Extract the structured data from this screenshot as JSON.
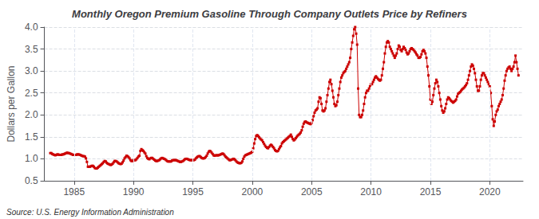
{
  "chart_data": {
    "type": "line",
    "title": "Monthly Oregon Premium Gasoline Through Company Outlets Price by Refiners",
    "ylabel": "Dollars per Gallon",
    "annotations": [
      "Source: U.S. Energy Information Administration"
    ],
    "color": "#cc0000",
    "marker": "square",
    "grid": true,
    "xlim": [
      1982.5,
      2022.8
    ],
    "xticks": [
      1985,
      1990,
      1995,
      2000,
      2005,
      2010,
      2015,
      2020
    ],
    "ylim": [
      0.5,
      4.0
    ],
    "yticks": [
      0.5,
      {
        "value": 1.0,
        "label": "1.0"
      },
      1.5,
      {
        "value": 2.0,
        "label": "2.0"
      },
      2.5,
      {
        "value": 3.0,
        "label": "3.0"
      },
      3.5,
      {
        "value": 4.0,
        "label": "4.0"
      }
    ],
    "x": [
      1983.0,
      1983.083,
      1983.167,
      1983.25,
      1983.333,
      1983.417,
      1983.5,
      1983.583,
      1983.667,
      1983.75,
      1983.833,
      1983.917,
      1984.0,
      1984.083,
      1984.167,
      1984.25,
      1984.333,
      1984.417,
      1984.5,
      1984.583,
      1984.667,
      1984.75,
      1984.833,
      1984.917,
      1985.0,
      1985.083,
      1985.167,
      1985.25,
      1985.333,
      1985.417,
      1985.5,
      1985.583,
      1985.667,
      1985.75,
      1985.833,
      1985.917,
      1986.0,
      1986.083,
      1986.167,
      1986.25,
      1986.333,
      1986.417,
      1986.5,
      1986.583,
      1986.667,
      1986.75,
      1986.833,
      1986.917,
      1987.0,
      1987.083,
      1987.167,
      1987.25,
      1987.333,
      1987.417,
      1987.5,
      1987.583,
      1987.667,
      1987.75,
      1987.833,
      1987.917,
      1988.0,
      1988.083,
      1988.167,
      1988.25,
      1988.333,
      1988.417,
      1988.5,
      1988.583,
      1988.667,
      1988.75,
      1988.833,
      1988.917,
      1989.0,
      1989.083,
      1989.167,
      1989.25,
      1989.333,
      1989.417,
      1989.5,
      1989.583,
      1989.667,
      1989.75,
      1989.833,
      1989.917,
      1990.0,
      1990.083,
      1990.167,
      1990.25,
      1990.333,
      1990.417,
      1990.5,
      1990.583,
      1990.667,
      1990.75,
      1990.833,
      1990.917,
      1991.0,
      1991.083,
      1991.167,
      1991.25,
      1991.333,
      1991.417,
      1991.5,
      1991.583,
      1991.667,
      1991.75,
      1991.833,
      1991.917,
      1992.0,
      1992.083,
      1992.167,
      1992.25,
      1992.333,
      1992.417,
      1992.5,
      1992.583,
      1992.667,
      1992.75,
      1992.833,
      1992.917,
      1993.0,
      1993.083,
      1993.167,
      1993.25,
      1993.333,
      1993.417,
      1993.5,
      1993.583,
      1993.667,
      1993.75,
      1993.833,
      1993.917,
      1994.0,
      1994.083,
      1994.167,
      1994.25,
      1994.333,
      1994.417,
      1994.5,
      1994.583,
      1994.667,
      1994.75,
      1994.833,
      1994.917,
      1995.0,
      1995.083,
      1995.167,
      1995.25,
      1995.333,
      1995.417,
      1995.5,
      1995.583,
      1995.667,
      1995.75,
      1995.833,
      1995.917,
      1996.0,
      1996.083,
      1996.167,
      1996.25,
      1996.333,
      1996.417,
      1996.5,
      1996.583,
      1996.667,
      1996.75,
      1996.833,
      1996.917,
      1997.0,
      1997.083,
      1997.167,
      1997.25,
      1997.333,
      1997.417,
      1997.5,
      1997.583,
      1997.667,
      1997.75,
      1997.833,
      1997.917,
      1998.0,
      1998.083,
      1998.167,
      1998.25,
      1998.333,
      1998.417,
      1998.5,
      1998.583,
      1998.667,
      1998.75,
      1998.833,
      1998.917,
      1999.0,
      1999.083,
      1999.167,
      1999.25,
      1999.333,
      1999.417,
      1999.5,
      1999.583,
      1999.667,
      1999.75,
      1999.833,
      1999.917,
      2000.0,
      2000.083,
      2000.167,
      2000.25,
      2000.333,
      2000.417,
      2000.5,
      2000.583,
      2000.667,
      2000.75,
      2000.833,
      2000.917,
      2001.0,
      2001.083,
      2001.167,
      2001.25,
      2001.333,
      2001.417,
      2001.5,
      2001.583,
      2001.667,
      2001.75,
      2001.833,
      2001.917,
      2002.0,
      2002.083,
      2002.167,
      2002.25,
      2002.333,
      2002.417,
      2002.5,
      2002.583,
      2002.667,
      2002.75,
      2002.833,
      2002.917,
      2003.0,
      2003.083,
      2003.167,
      2003.25,
      2003.333,
      2003.417,
      2003.5,
      2003.583,
      2003.667,
      2003.75,
      2003.833,
      2003.917,
      2004.0,
      2004.083,
      2004.167,
      2004.25,
      2004.333,
      2004.417,
      2004.5,
      2004.583,
      2004.667,
      2004.75,
      2004.833,
      2004.917,
      2005.0,
      2005.083,
      2005.167,
      2005.25,
      2005.333,
      2005.417,
      2005.5,
      2005.583,
      2005.667,
      2005.75,
      2005.833,
      2005.917,
      2006.0,
      2006.083,
      2006.167,
      2006.25,
      2006.333,
      2006.417,
      2006.5,
      2006.583,
      2006.667,
      2006.75,
      2006.833,
      2006.917,
      2007.0,
      2007.083,
      2007.167,
      2007.25,
      2007.333,
      2007.417,
      2007.5,
      2007.583,
      2007.667,
      2007.75,
      2007.833,
      2007.917,
      2008.0,
      2008.083,
      2008.167,
      2008.25,
      2008.333,
      2008.417,
      2008.5,
      2008.583,
      2008.667,
      2008.75,
      2008.833,
      2008.917,
      2009.0,
      2009.083,
      2009.167,
      2009.25,
      2009.333,
      2009.417,
      2009.5,
      2009.583,
      2009.667,
      2009.75,
      2009.833,
      2009.917,
      2010.0,
      2010.083,
      2010.167,
      2010.25,
      2010.333,
      2010.417,
      2010.5,
      2010.583,
      2010.667,
      2010.75,
      2010.833,
      2010.917,
      2011.0,
      2011.083,
      2011.167,
      2011.25,
      2011.333,
      2011.417,
      2011.5,
      2011.583,
      2011.667,
      2011.75,
      2011.833,
      2011.917,
      2012.0,
      2012.083,
      2012.167,
      2012.25,
      2012.333,
      2012.417,
      2012.5,
      2012.583,
      2012.667,
      2012.75,
      2012.833,
      2012.917,
      2013.0,
      2013.083,
      2013.167,
      2013.25,
      2013.333,
      2013.417,
      2013.5,
      2013.583,
      2013.667,
      2013.75,
      2013.833,
      2013.917,
      2014.0,
      2014.083,
      2014.167,
      2014.25,
      2014.333,
      2014.417,
      2014.5,
      2014.583,
      2014.667,
      2014.75,
      2014.833,
      2014.917,
      2015.0,
      2015.083,
      2015.167,
      2015.25,
      2015.333,
      2015.417,
      2015.5,
      2015.583,
      2015.667,
      2015.75,
      2015.833,
      2015.917,
      2016.0,
      2016.083,
      2016.167,
      2016.25,
      2016.333,
      2016.417,
      2016.5,
      2016.583,
      2016.667,
      2016.75,
      2016.833,
      2016.917,
      2017.0,
      2017.083,
      2017.167,
      2017.25,
      2017.333,
      2017.417,
      2017.5,
      2017.583,
      2017.667,
      2017.75,
      2017.833,
      2017.917,
      2018.0,
      2018.083,
      2018.167,
      2018.25,
      2018.333,
      2018.417,
      2018.5,
      2018.583,
      2018.667,
      2018.75,
      2018.833,
      2018.917,
      2019.0,
      2019.083,
      2019.167,
      2019.25,
      2019.333,
      2019.417,
      2019.5,
      2019.583,
      2019.667,
      2019.75,
      2019.833,
      2019.917,
      2020.0,
      2020.083,
      2020.167,
      2020.25,
      2020.333,
      2020.417,
      2020.5,
      2020.583,
      2020.667,
      2020.75,
      2020.833,
      2020.917,
      2021.0,
      2021.083,
      2021.167,
      2021.25,
      2021.333,
      2021.417,
      2021.5,
      2021.583,
      2021.667,
      2021.75,
      2021.833,
      2021.917,
      2022.0,
      2022.083,
      2022.167,
      2022.25,
      2022.333,
      2022.417
    ],
    "values": [
      1.13,
      1.13,
      1.11,
      1.1,
      1.09,
      1.08,
      1.09,
      1.1,
      1.1,
      1.09,
      1.09,
      1.09,
      1.1,
      1.1,
      1.11,
      1.12,
      1.13,
      1.14,
      1.13,
      1.13,
      1.12,
      1.11,
      1.1,
      1.09,
      1.09,
      1.09,
      1.09,
      1.1,
      1.1,
      1.1,
      1.09,
      1.08,
      1.07,
      1.06,
      1.06,
      1.05,
      1.01,
      0.93,
      0.82,
      0.82,
      0.82,
      0.83,
      0.84,
      0.84,
      0.82,
      0.79,
      0.78,
      0.78,
      0.8,
      0.82,
      0.84,
      0.86,
      0.88,
      0.9,
      0.93,
      0.95,
      0.94,
      0.91,
      0.89,
      0.88,
      0.87,
      0.86,
      0.87,
      0.89,
      0.92,
      0.95,
      0.95,
      0.94,
      0.92,
      0.9,
      0.89,
      0.88,
      0.89,
      0.92,
      0.96,
      1.01,
      1.04,
      1.07,
      1.06,
      1.04,
      1.01,
      0.97,
      0.95,
      0.95,
      0.97,
      0.97,
      0.97,
      0.99,
      1.02,
      1.05,
      1.07,
      1.18,
      1.22,
      1.2,
      1.18,
      1.15,
      1.12,
      1.06,
      1.02,
      1.0,
      0.99,
      1.01,
      1.02,
      1.02,
      1.0,
      0.98,
      0.96,
      0.95,
      0.95,
      0.96,
      0.97,
      0.99,
      1.01,
      1.02,
      1.01,
      1.0,
      0.99,
      0.97,
      0.95,
      0.94,
      0.94,
      0.94,
      0.94,
      0.96,
      0.97,
      0.97,
      0.97,
      0.97,
      0.96,
      0.95,
      0.94,
      0.93,
      0.93,
      0.94,
      0.95,
      0.97,
      0.99,
      1.0,
      1.0,
      0.99,
      0.98,
      0.97,
      0.97,
      0.97,
      0.97,
      0.97,
      0.98,
      1.01,
      1.03,
      1.05,
      1.06,
      1.06,
      1.04,
      1.02,
      1.01,
      1.01,
      1.02,
      1.04,
      1.07,
      1.12,
      1.16,
      1.18,
      1.17,
      1.14,
      1.11,
      1.08,
      1.07,
      1.08,
      1.08,
      1.08,
      1.08,
      1.09,
      1.1,
      1.11,
      1.12,
      1.11,
      1.08,
      1.05,
      1.03,
      1.01,
      0.99,
      0.97,
      0.97,
      0.98,
      0.99,
      1.0,
      0.99,
      0.97,
      0.94,
      0.92,
      0.91,
      0.9,
      0.9,
      0.91,
      0.94,
      1.0,
      1.05,
      1.08,
      1.09,
      1.1,
      1.11,
      1.12,
      1.13,
      1.14,
      1.16,
      1.24,
      1.35,
      1.45,
      1.52,
      1.54,
      1.52,
      1.49,
      1.46,
      1.44,
      1.42,
      1.38,
      1.34,
      1.3,
      1.27,
      1.25,
      1.24,
      1.27,
      1.3,
      1.32,
      1.3,
      1.27,
      1.24,
      1.2,
      1.18,
      1.17,
      1.18,
      1.22,
      1.26,
      1.29,
      1.35,
      1.38,
      1.4,
      1.42,
      1.44,
      1.46,
      1.48,
      1.5,
      1.52,
      1.55,
      1.5,
      1.45,
      1.42,
      1.44,
      1.47,
      1.5,
      1.53,
      1.55,
      1.57,
      1.6,
      1.65,
      1.73,
      1.8,
      1.84,
      1.85,
      1.83,
      1.82,
      1.81,
      1.8,
      1.79,
      1.82,
      1.88,
      1.97,
      2.05,
      2.1,
      2.12,
      2.15,
      2.3,
      2.4,
      2.38,
      2.25,
      2.1,
      2.08,
      2.1,
      2.15,
      2.3,
      2.45,
      2.6,
      2.75,
      2.8,
      2.7,
      2.55,
      2.4,
      2.25,
      2.2,
      2.22,
      2.3,
      2.45,
      2.6,
      2.75,
      2.85,
      2.9,
      2.95,
      2.98,
      3.0,
      3.05,
      3.1,
      3.15,
      3.2,
      3.3,
      3.5,
      3.65,
      3.8,
      3.95,
      4.0,
      3.85,
      3.6,
      2.6,
      2.0,
      1.95,
      1.95,
      2.0,
      2.1,
      2.25,
      2.4,
      2.5,
      2.55,
      2.55,
      2.6,
      2.65,
      2.7,
      2.7,
      2.75,
      2.8,
      2.85,
      2.88,
      2.85,
      2.82,
      2.8,
      2.78,
      2.8,
      2.9,
      3.05,
      3.2,
      3.4,
      3.55,
      3.65,
      3.68,
      3.65,
      3.55,
      3.5,
      3.45,
      3.4,
      3.35,
      3.3,
      3.35,
      3.4,
      3.5,
      3.58,
      3.55,
      3.48,
      3.45,
      3.5,
      3.55,
      3.52,
      3.48,
      3.42,
      3.38,
      3.4,
      3.45,
      3.5,
      3.52,
      3.5,
      3.48,
      3.45,
      3.42,
      3.38,
      3.35,
      3.3,
      3.3,
      3.32,
      3.38,
      3.45,
      3.48,
      3.45,
      3.4,
      3.3,
      3.1,
      2.9,
      2.65,
      2.35,
      2.25,
      2.3,
      2.45,
      2.6,
      2.72,
      2.8,
      2.75,
      2.65,
      2.5,
      2.35,
      2.2,
      2.1,
      2.05,
      2.08,
      2.15,
      2.25,
      2.35,
      2.4,
      2.38,
      2.35,
      2.32,
      2.3,
      2.28,
      2.3,
      2.32,
      2.35,
      2.42,
      2.48,
      2.5,
      2.52,
      2.55,
      2.58,
      2.6,
      2.62,
      2.65,
      2.68,
      2.72,
      2.8,
      2.9,
      3.0,
      3.1,
      3.15,
      3.12,
      3.05,
      2.95,
      2.8,
      2.65,
      2.55,
      2.55,
      2.65,
      2.8,
      2.9,
      2.95,
      2.95,
      2.9,
      2.85,
      2.8,
      2.75,
      2.7,
      2.65,
      2.5,
      2.2,
      1.9,
      1.75,
      1.85,
      2.0,
      2.08,
      2.12,
      2.2,
      2.25,
      2.3,
      2.35,
      2.45,
      2.6,
      2.78,
      2.9,
      3.0,
      3.05,
      3.08,
      3.1,
      3.05,
      3.0,
      3.05,
      3.1,
      3.2,
      3.35,
      3.2,
      3.05,
      2.9
    ]
  }
}
